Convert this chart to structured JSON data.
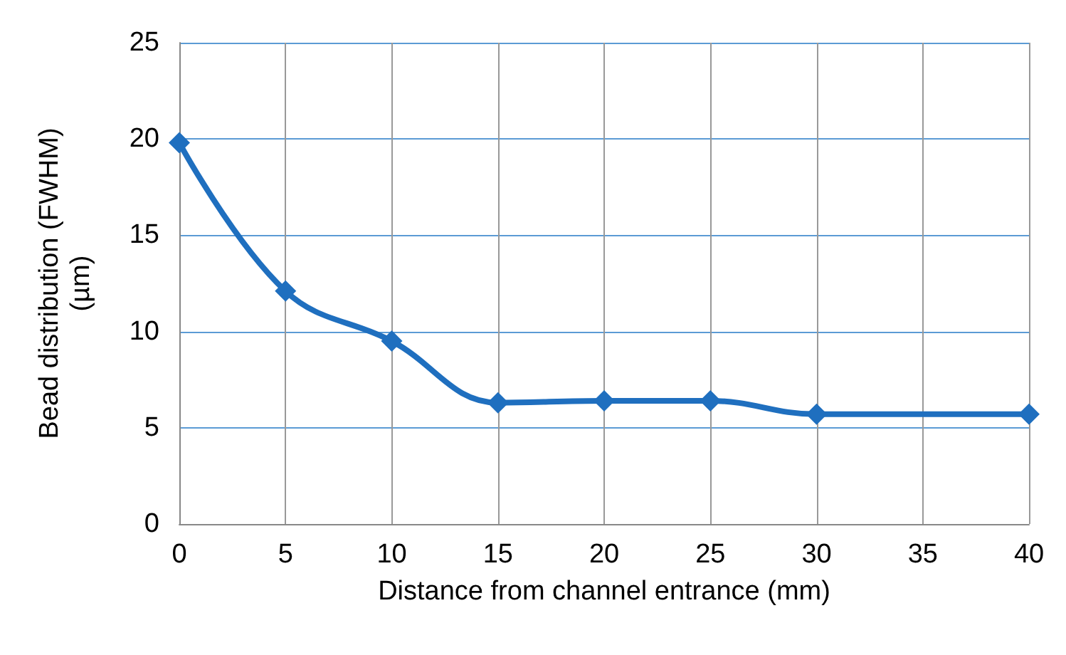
{
  "chart_data": {
    "type": "line",
    "xlabel": "Distance from channel entrance (mm)",
    "ylabel": "Bead distribution (FWHM)\n(µm)",
    "x": [
      0,
      5,
      10,
      15,
      20,
      25,
      30,
      40
    ],
    "series": [
      {
        "color": "#1f6fbf",
        "values": [
          19.8,
          12.1,
          9.5,
          6.3,
          6.4,
          6.4,
          5.7,
          5.7
        ]
      }
    ],
    "xlim": [
      0,
      40
    ],
    "xticks": [
      0,
      5,
      10,
      15,
      20,
      25,
      30,
      35,
      40
    ],
    "ylim": [
      0,
      25
    ],
    "yticks": [
      0,
      5,
      10,
      15,
      20,
      25
    ],
    "grid": true,
    "marker": "diamond",
    "line_style": "solid"
  }
}
